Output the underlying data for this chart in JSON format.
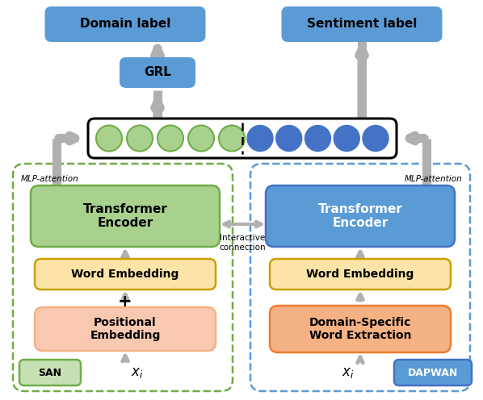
{
  "fig_width": 5.98,
  "fig_height": 4.96,
  "dpi": 100,
  "bg_color": "#ffffff",
  "colors": {
    "blue_box": "#5b9bd5",
    "blue_box_dark": "#4472c4",
    "green_box": "#70ad47",
    "green_box_light": "#a9d18e",
    "yellow_box": "#fce4a8",
    "yellow_edge": "#c8a000",
    "peach_box": "#f8c8b0",
    "peach_edge": "#f4b183",
    "orange_box": "#f4b183",
    "orange_edge": "#ed7d31",
    "arrow_gray": "#b0b0b0",
    "dot_green": "#a9d18e",
    "dot_green_edge": "#70ad47",
    "dot_blue": "#4472c4",
    "dashed_green": "#70ad47",
    "dashed_blue": "#5b9bd5"
  },
  "labels": {
    "domain_label": "Domain label",
    "sentiment_label": "Sentiment label",
    "grl": "GRL",
    "transformer_encoder": "Transformer\nEncoder",
    "word_embedding_left": "Word Embedding",
    "word_embedding_right": "Word Embedding",
    "positional_embedding": "Positional\nEmbedding",
    "domain_specific": "Domain-Specific\nWord Extraction",
    "san": "SAN",
    "dapwan": "DAPWAN",
    "mlp_attention_left": "MLP-attention",
    "mlp_attention_right": "MLP-attention",
    "interactive": "Interactive\nconnection",
    "plus": "+",
    "xi_left": "$x_i$",
    "xi_right": "$x_i$"
  }
}
